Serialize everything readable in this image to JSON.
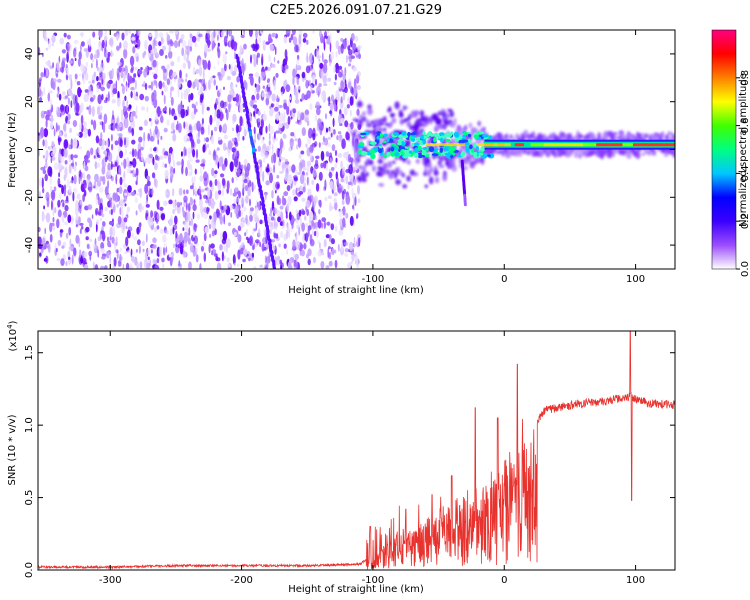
{
  "title": "C2E5.2026.091.07.21.G29",
  "chart_data": [
    {
      "type": "heatmap",
      "xlabel": "Height of straight line (km)",
      "ylabel": "Frequency (Hz)",
      "xlim": [
        -355,
        130
      ],
      "ylim": [
        -50,
        50
      ],
      "xticks": [
        -300,
        -200,
        -100,
        0,
        100
      ],
      "yticks": [
        -40,
        -20,
        0,
        20,
        40
      ],
      "xtick_labels": [
        "-300",
        "-200",
        "-100",
        "0",
        "100"
      ],
      "ytick_labels": [
        "-40",
        "-20",
        "0",
        "20",
        "40"
      ],
      "colorbar_label": "Normalized spectral amplitude",
      "colorbar_range": [
        0,
        1
      ],
      "colorbar_ticks": [
        0.0,
        0.2,
        0.4,
        0.6,
        0.8
      ],
      "colorbar_tick_labels": [
        "0.0",
        "0.2",
        "0.4",
        "0.6",
        "0.8"
      ],
      "colormap": [
        "#ffffff",
        "#e0c8ff",
        "#9b4dff",
        "#6a00ff",
        "#0000ff",
        "#00b0ff",
        "#00ffb0",
        "#40ff00",
        "#ffff00",
        "#ff8000",
        "#ff0000",
        "#ff00aa"
      ],
      "features": {
        "diffuse_noise_x_range": [
          -355,
          -110
        ],
        "slanted_trace": {
          "x": [
            -203,
            -175
          ],
          "y": [
            38,
            -50
          ]
        },
        "signal_band_x_range": [
          -115,
          130
        ],
        "signal_center_hz": 2
      }
    },
    {
      "type": "line",
      "xlabel": "Height of straight line (km)",
      "ylabel": "SNR (10 * v/v)",
      "scale_label": "(x10",
      "scale_exponent": "4",
      "xlim": [
        -355,
        130
      ],
      "ylim": [
        0,
        1.65
      ],
      "xticks": [
        -300,
        -200,
        -100,
        0,
        100
      ],
      "yticks": [
        0.0,
        0.5,
        1.0,
        1.5
      ],
      "xtick_labels": [
        "-300",
        "-200",
        "-100",
        "0",
        "100"
      ],
      "ytick_labels": [
        "0.0",
        "0.5",
        "1.0",
        "1.5"
      ],
      "color": "#e8322e",
      "series": [
        {
          "name": "SNR",
          "x": [
            -355,
            -300,
            -250,
            -200,
            -150,
            -110,
            -100,
            -90,
            -80,
            -70,
            -60,
            -50,
            -40,
            -30,
            -20,
            -10,
            0,
            5,
            10,
            20,
            30,
            40,
            60,
            80,
            95,
            100,
            110,
            130
          ],
          "y": [
            0.02,
            0.02,
            0.03,
            0.03,
            0.03,
            0.04,
            0.1,
            0.18,
            0.24,
            0.28,
            0.35,
            0.42,
            0.48,
            0.55,
            0.58,
            0.62,
            0.75,
            0.95,
            0.85,
            0.95,
            1.1,
            1.12,
            1.15,
            1.17,
            1.2,
            1.18,
            1.15,
            1.14
          ]
        }
      ],
      "spikes": [
        {
          "x": -102,
          "y": 0.3
        },
        {
          "x": -75,
          "y": 0.42
        },
        {
          "x": -55,
          "y": 0.52
        },
        {
          "x": -40,
          "y": 0.65
        },
        {
          "x": -22,
          "y": 1.12
        },
        {
          "x": -5,
          "y": 1.05
        },
        {
          "x": 10,
          "y": 1.42
        },
        {
          "x": 96,
          "y": 1.66
        },
        {
          "x": 97,
          "y": 0.48
        }
      ]
    }
  ]
}
